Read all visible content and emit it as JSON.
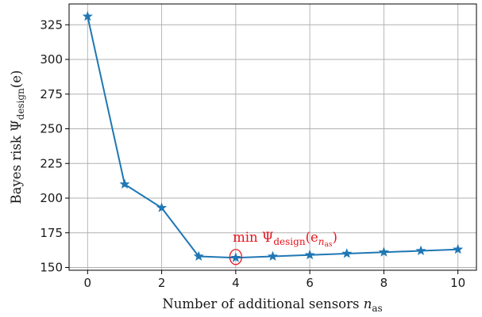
{
  "chart_data": {
    "type": "line",
    "xlabel": "Number of additional sensors n_as",
    "xlabel_main": "Number of additional sensors ",
    "xlabel_var": "n",
    "xlabel_sub": "as",
    "ylabel": "Bayes risk Ψ_design(e)",
    "ylabel_main": "Bayes risk ",
    "ylabel_psi": "Ψ",
    "ylabel_sub": "design",
    "ylabel_arg": "(e)",
    "xlim": [
      -0.5,
      10.5
    ],
    "ylim": [
      148,
      340
    ],
    "grid": true,
    "x_ticks": [
      0,
      2,
      4,
      6,
      8,
      10
    ],
    "y_ticks": [
      150,
      175,
      200,
      225,
      250,
      275,
      300,
      325
    ],
    "series": [
      {
        "x": [
          0,
          1,
          2,
          3,
          4,
          5,
          6,
          7,
          8,
          9,
          10
        ],
        "values": [
          331,
          210,
          193,
          158,
          157,
          158,
          159,
          160,
          161,
          162,
          163
        ],
        "color": "#1f77b4",
        "marker": "star"
      }
    ],
    "annotation": {
      "text": "min Ψ_design(e_{n_as})",
      "prefix": "min ",
      "psi": "Ψ",
      "sub": "design",
      "arg_open": "(e",
      "arg_sub": "n",
      "arg_subsub": "as",
      "arg_close": ")",
      "color": "#e8141e",
      "point_index": 4
    }
  }
}
